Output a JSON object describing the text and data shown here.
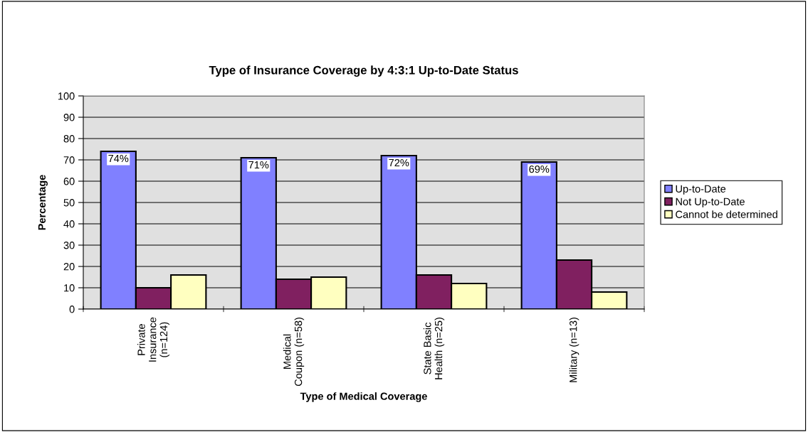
{
  "chart_data": {
    "type": "bar",
    "title": "Type of Insurance Coverage by 4:3:1 Up-to-Date Status",
    "xlabel": "Type of Medical Coverage",
    "ylabel": "Percentage",
    "categories": [
      "Private\nInsurance\n(n=124)",
      "Medical\nCoupon (n=58)",
      "State Basic\nHealth (n=25)",
      "Military (n=13)"
    ],
    "series": [
      {
        "name": "Up-to-Date",
        "color": "#8080ff",
        "values": [
          74,
          71,
          72,
          69
        ],
        "value_labels": [
          "74%",
          "71%",
          "72%",
          "69%"
        ]
      },
      {
        "name": "Not Up-to-Date",
        "color": "#802060",
        "values": [
          10,
          14,
          16,
          23
        ]
      },
      {
        "name": "Cannot be determined",
        "color": "#ffffc0",
        "values": [
          16,
          15,
          12,
          8
        ]
      }
    ],
    "ylim": [
      0,
      100
    ],
    "yticks": [
      0,
      10,
      20,
      30,
      40,
      50,
      60,
      70,
      80,
      90,
      100
    ],
    "grid": "y",
    "legend": "right"
  }
}
